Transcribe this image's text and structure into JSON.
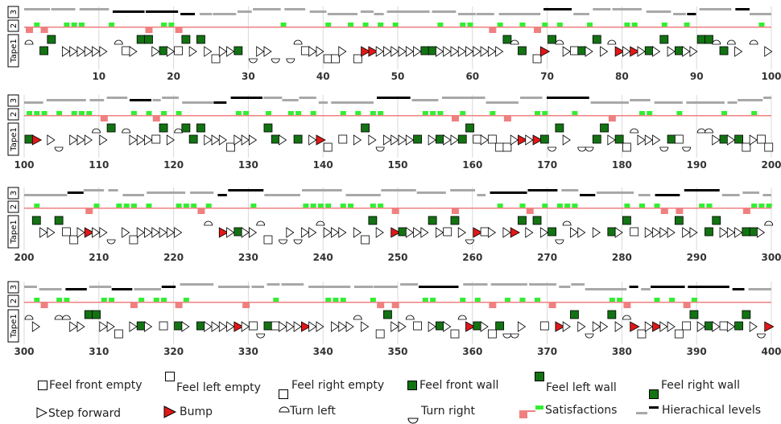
{
  "colors": {
    "wall_green": "#137313",
    "bump_red": "#e01818",
    "satisfaction_green": "#33ee33",
    "satisfaction_red": "#f08080",
    "level_gray": "#a8a8a8",
    "level_black": "#000000",
    "gridline": "#d8d8d8"
  },
  "row_labels": {
    "level3": "3",
    "level2": "2",
    "tape1": "Tape1"
  },
  "panels": [
    {
      "ticks": [
        "10",
        "20",
        "30",
        "40",
        "50",
        "60",
        "70",
        "80",
        "90",
        "100"
      ]
    },
    {
      "ticks": [
        "100",
        "110",
        "120",
        "130",
        "140",
        "150",
        "160",
        "170",
        "180",
        "190",
        "200"
      ]
    },
    {
      "ticks": [
        "200",
        "210",
        "220",
        "230",
        "240",
        "250",
        "260",
        "270",
        "280",
        "290",
        "300"
      ]
    },
    {
      "ticks": [
        "300",
        "310",
        "320",
        "330",
        "340",
        "350",
        "360",
        "370",
        "380",
        "390",
        "400"
      ]
    }
  ],
  "legend": [
    {
      "icon": "feel-front-empty-icon",
      "label": "Feel front empty"
    },
    {
      "icon": "feel-left-empty-icon",
      "label": "Feel left empty"
    },
    {
      "icon": "feel-right-empty-icon",
      "label": "Feel right empty"
    },
    {
      "icon": "feel-front-wall-icon",
      "label": "Feel front wall"
    },
    {
      "icon": "feel-left-wall-icon",
      "label": "Feel left wall"
    },
    {
      "icon": "feel-right-wall-icon",
      "label": "Feel right wall"
    },
    {
      "icon": "step-forward-icon",
      "label": "Step forward"
    },
    {
      "icon": "bump-icon",
      "label": "Bump"
    },
    {
      "icon": "turn-left-icon",
      "label": "Turn left"
    },
    {
      "icon": "turn-right-icon",
      "label": "Turn right"
    },
    {
      "icon": "satisfactions-icon",
      "label": "Satisfactions"
    },
    {
      "icon": "hierarchical-levels-icon",
      "label": "Hierachical levels"
    }
  ]
}
